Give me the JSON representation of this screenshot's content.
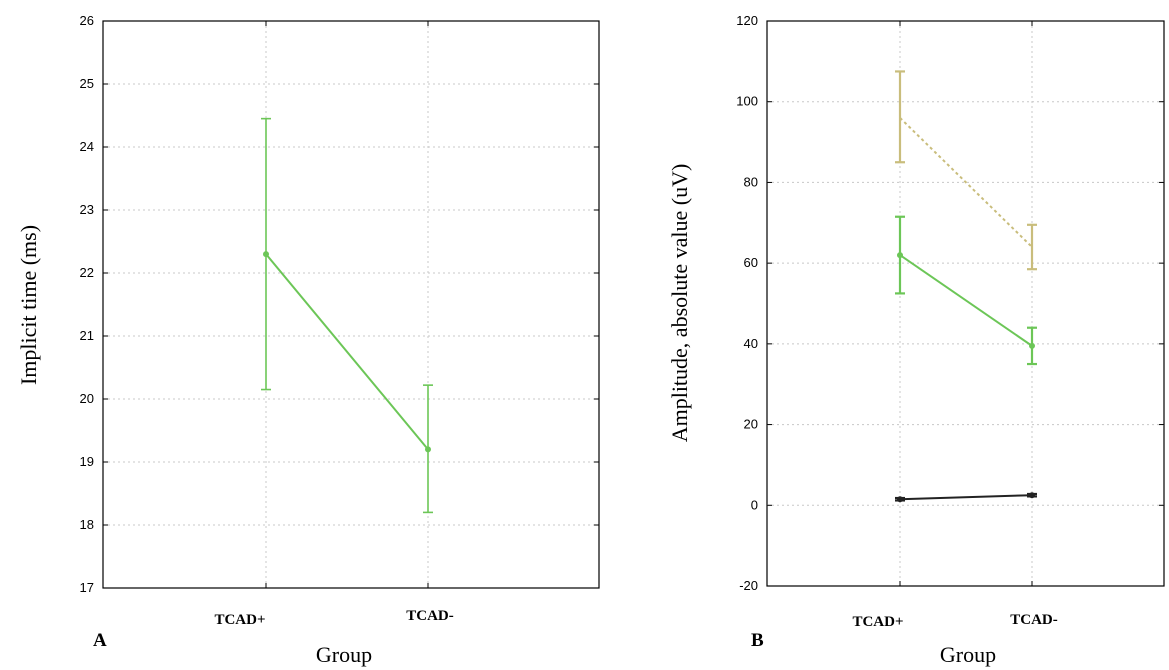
{
  "chart_data": [
    {
      "panel_label": "A",
      "type": "line",
      "xlabel": "Group",
      "ylabel": "Implicit time (ms)",
      "categories": [
        "TCAD+",
        "TCAD-"
      ],
      "ylim": [
        17,
        26
      ],
      "yticks": [
        17,
        18,
        19,
        20,
        21,
        22,
        23,
        24,
        25,
        26
      ],
      "grid": true,
      "series": [
        {
          "color": "#6cc657",
          "dashed": false,
          "show_line": true,
          "marker": "circle",
          "values": [
            22.3,
            19.2
          ],
          "error_low": [
            20.15,
            18.2
          ],
          "error_high": [
            24.45,
            20.22
          ]
        }
      ]
    },
    {
      "panel_label": "B",
      "type": "line",
      "xlabel": "Group",
      "ylabel": "Amplitude, absolute value (uV)",
      "categories": [
        "TCAD+",
        "TCAD-"
      ],
      "ylim": [
        -20,
        120
      ],
      "yticks": [
        -20,
        0,
        20,
        40,
        60,
        80,
        100,
        120
      ],
      "grid": true,
      "series": [
        {
          "color": "#c9bd7c",
          "dashed": true,
          "show_line": true,
          "marker": "none",
          "values": [
            96,
            64
          ],
          "error_low": [
            85,
            58.5
          ],
          "error_high": [
            107.5,
            69.5
          ]
        },
        {
          "color": "#6cc657",
          "dashed": false,
          "show_line": true,
          "marker": "circle",
          "values": [
            62,
            39.5
          ],
          "error_low": [
            52.5,
            35
          ],
          "error_high": [
            71.5,
            44
          ]
        },
        {
          "color": "#222222",
          "dashed": false,
          "show_line": true,
          "marker": "circle",
          "values": [
            1.5,
            2.5
          ],
          "error_low": [
            1.2,
            2.2
          ],
          "error_high": [
            1.8,
            2.8
          ]
        }
      ]
    }
  ]
}
